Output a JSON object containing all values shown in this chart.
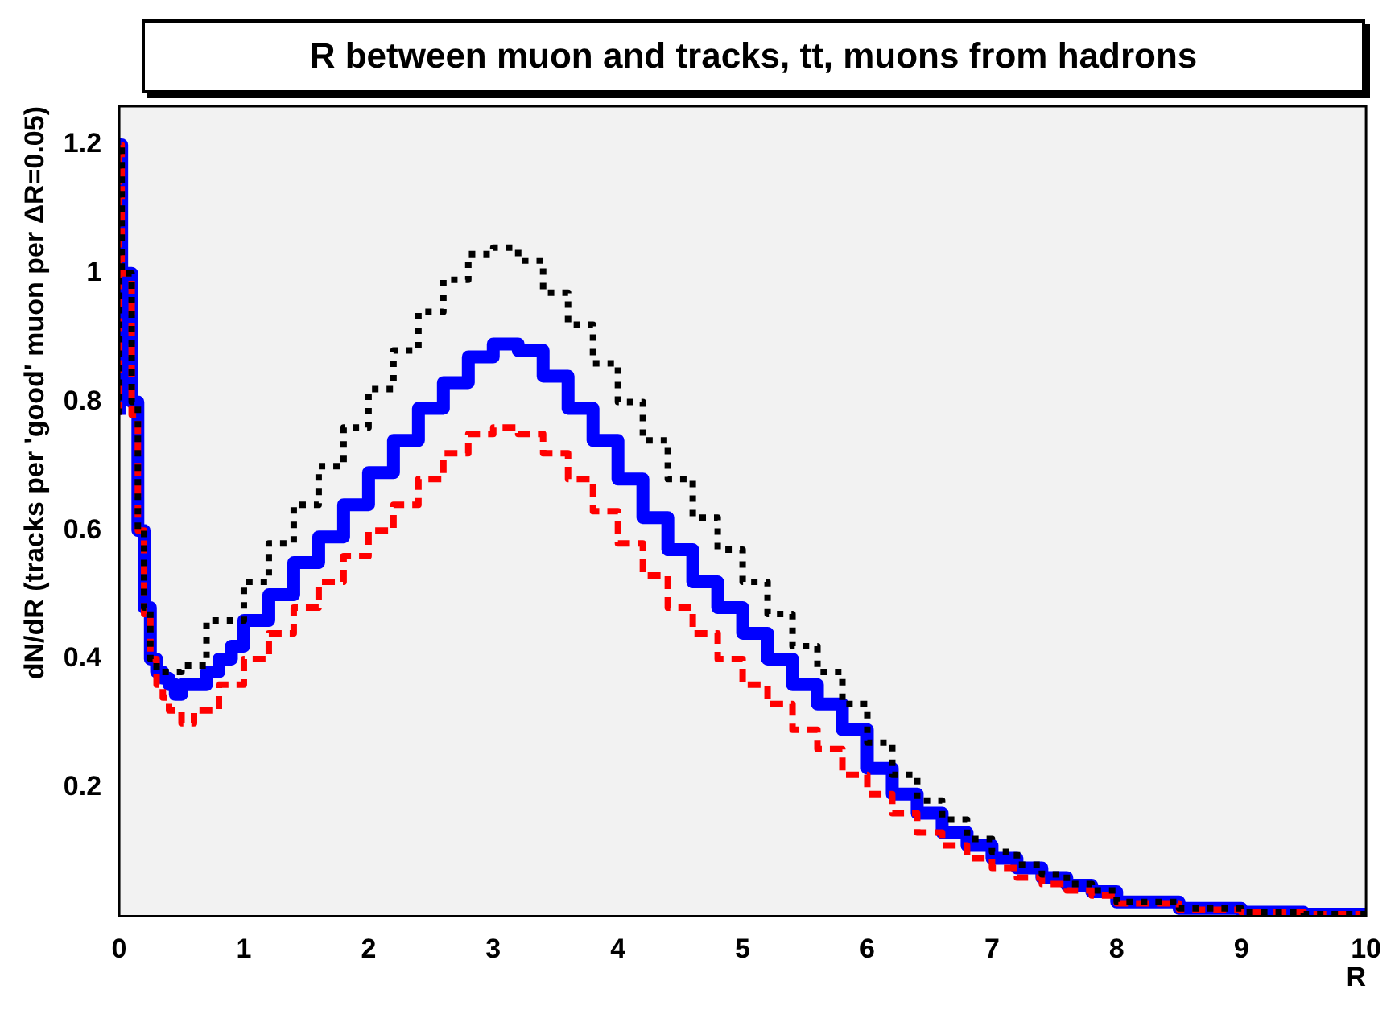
{
  "chart_data": {
    "type": "step",
    "title": "R between muon and tracks, tt, muons from hadrons",
    "xlabel": "R",
    "ylabel": "dN/dR (tracks per 'good' muon per ΔR=0.05)",
    "xlim": [
      0,
      10
    ],
    "xticks": [
      0,
      1,
      2,
      3,
      4,
      5,
      6,
      7,
      8,
      9,
      10
    ],
    "ylim": [
      0,
      1.26
    ],
    "yticks": [
      0.2,
      0.4,
      0.6,
      0.8,
      1,
      1.2
    ],
    "grid": false,
    "legend": false,
    "marker": "none",
    "series": [
      {
        "color": "#000000",
        "line_style": "dotted",
        "x": [
          0,
          0.02,
          0.1,
          0.15,
          0.2,
          0.25,
          0.3,
          0.35,
          0.5,
          0.7,
          1.0,
          1.2,
          1.4,
          1.6,
          1.8,
          2.0,
          2.2,
          2.4,
          2.6,
          2.8,
          3.0,
          3.2,
          3.4,
          3.6,
          3.8,
          4.0,
          4.2,
          4.4,
          4.6,
          4.8,
          5.0,
          5.2,
          5.4,
          5.6,
          5.8,
          6.0,
          6.2,
          6.4,
          6.6,
          6.8,
          7.0,
          7.2,
          7.4,
          7.6,
          7.8,
          8.0,
          8.5,
          9.0,
          9.5,
          10
        ],
        "values": [
          0.78,
          1.2,
          1.0,
          0.8,
          0.6,
          0.48,
          0.4,
          0.38,
          0.38,
          0.39,
          0.46,
          0.52,
          0.58,
          0.64,
          0.7,
          0.76,
          0.82,
          0.88,
          0.94,
          0.99,
          1.03,
          1.04,
          1.02,
          0.97,
          0.92,
          0.86,
          0.8,
          0.74,
          0.68,
          0.62,
          0.57,
          0.52,
          0.47,
          0.42,
          0.38,
          0.33,
          0.27,
          0.22,
          0.18,
          0.15,
          0.12,
          0.1,
          0.08,
          0.065,
          0.05,
          0.04,
          0.022,
          0.012,
          0.006,
          0.003
        ]
      },
      {
        "color": "#ff0000",
        "line_style": "dashed",
        "x": [
          0,
          0.02,
          0.1,
          0.15,
          0.2,
          0.25,
          0.3,
          0.35,
          0.4,
          0.5,
          0.6,
          0.8,
          1.0,
          1.2,
          1.4,
          1.6,
          1.8,
          2.0,
          2.2,
          2.4,
          2.6,
          2.8,
          3.0,
          3.2,
          3.4,
          3.6,
          3.8,
          4.0,
          4.2,
          4.4,
          4.6,
          4.8,
          5.0,
          5.2,
          5.4,
          5.6,
          5.8,
          6.0,
          6.2,
          6.4,
          6.6,
          6.8,
          7.0,
          7.2,
          7.4,
          7.6,
          7.8,
          8.0,
          8.5,
          9.0,
          9.5,
          10
        ],
        "values": [
          0.78,
          1.2,
          1.0,
          0.78,
          0.6,
          0.47,
          0.4,
          0.36,
          0.34,
          0.32,
          0.3,
          0.32,
          0.36,
          0.4,
          0.44,
          0.48,
          0.52,
          0.56,
          0.6,
          0.64,
          0.68,
          0.72,
          0.75,
          0.76,
          0.75,
          0.72,
          0.68,
          0.63,
          0.58,
          0.53,
          0.48,
          0.44,
          0.4,
          0.36,
          0.33,
          0.29,
          0.26,
          0.22,
          0.19,
          0.16,
          0.13,
          0.11,
          0.09,
          0.075,
          0.06,
          0.05,
          0.04,
          0.032,
          0.02,
          0.01,
          0.006,
          0.003
        ]
      },
      {
        "color": "#0000ff",
        "line_style": "solid",
        "x": [
          0,
          0.02,
          0.1,
          0.15,
          0.2,
          0.25,
          0.3,
          0.35,
          0.4,
          0.45,
          0.5,
          0.7,
          0.8,
          0.9,
          1.0,
          1.2,
          1.4,
          1.6,
          1.8,
          2.0,
          2.2,
          2.4,
          2.6,
          2.8,
          3.0,
          3.2,
          3.4,
          3.6,
          3.8,
          4.0,
          4.2,
          4.4,
          4.6,
          4.8,
          5.0,
          5.2,
          5.4,
          5.6,
          5.8,
          6.0,
          6.2,
          6.4,
          6.6,
          6.8,
          7.0,
          7.2,
          7.4,
          7.6,
          7.8,
          8.0,
          8.5,
          9.0,
          9.5,
          10
        ],
        "values": [
          0.78,
          1.2,
          1.0,
          0.8,
          0.6,
          0.48,
          0.4,
          0.38,
          0.37,
          0.36,
          0.345,
          0.36,
          0.38,
          0.4,
          0.42,
          0.46,
          0.5,
          0.55,
          0.59,
          0.64,
          0.69,
          0.74,
          0.79,
          0.83,
          0.87,
          0.89,
          0.88,
          0.84,
          0.79,
          0.74,
          0.68,
          0.62,
          0.57,
          0.52,
          0.48,
          0.44,
          0.4,
          0.36,
          0.33,
          0.29,
          0.23,
          0.19,
          0.16,
          0.13,
          0.11,
          0.09,
          0.075,
          0.06,
          0.048,
          0.038,
          0.022,
          0.012,
          0.006,
          0.003
        ]
      }
    ]
  }
}
